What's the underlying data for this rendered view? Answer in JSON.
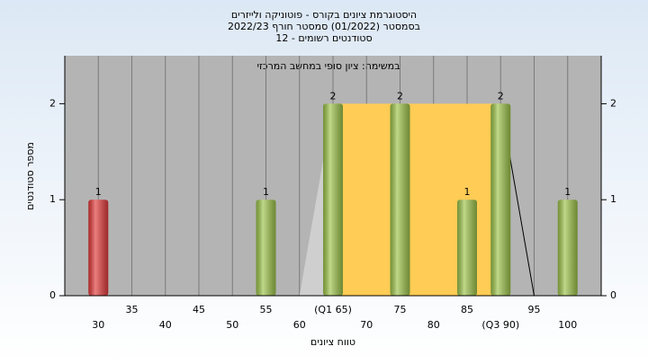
{
  "chart_data": {
    "type": "bar",
    "title": [
      "היסטוגרמת ציונים בקורס - פוטוניקה ולייזרים",
      "בסמסטר  (01/2022)  סמסטר חורף 2022/23",
      "סטודנטים רשומים - 12"
    ],
    "annotation": "במשימה: ציון סופי במחשב המרכזי",
    "x_label": "טווח ציונים",
    "y_label": "מספר סטודנטים",
    "x": [
      30,
      55,
      65,
      75,
      85,
      90,
      100
    ],
    "values": [
      1,
      1,
      2,
      2,
      1,
      2,
      1
    ],
    "colors": [
      "#e23a3a",
      "#9cc34a",
      "#9cc34a",
      "#9cc34a",
      "#9cc34a",
      "#9cc34a",
      "#9cc34a"
    ],
    "box": {
      "q1": 65,
      "q3": 90,
      "height": 2,
      "color": "#ffcc55"
    },
    "whiskers": [
      60,
      95
    ],
    "xlim": [
      25,
      105
    ],
    "ylim": [
      0,
      2.5
    ],
    "xticks": [
      30,
      35,
      40,
      45,
      50,
      55,
      60,
      {
        "value": 65,
        "label": "(Q1 65)"
      },
      70,
      75,
      80,
      85,
      {
        "value": 90,
        "label": "(Q3 90)"
      },
      95,
      100
    ],
    "yticks": [
      0,
      1,
      2
    ],
    "y2ticks": [
      0,
      1,
      2
    ],
    "grid": true
  }
}
